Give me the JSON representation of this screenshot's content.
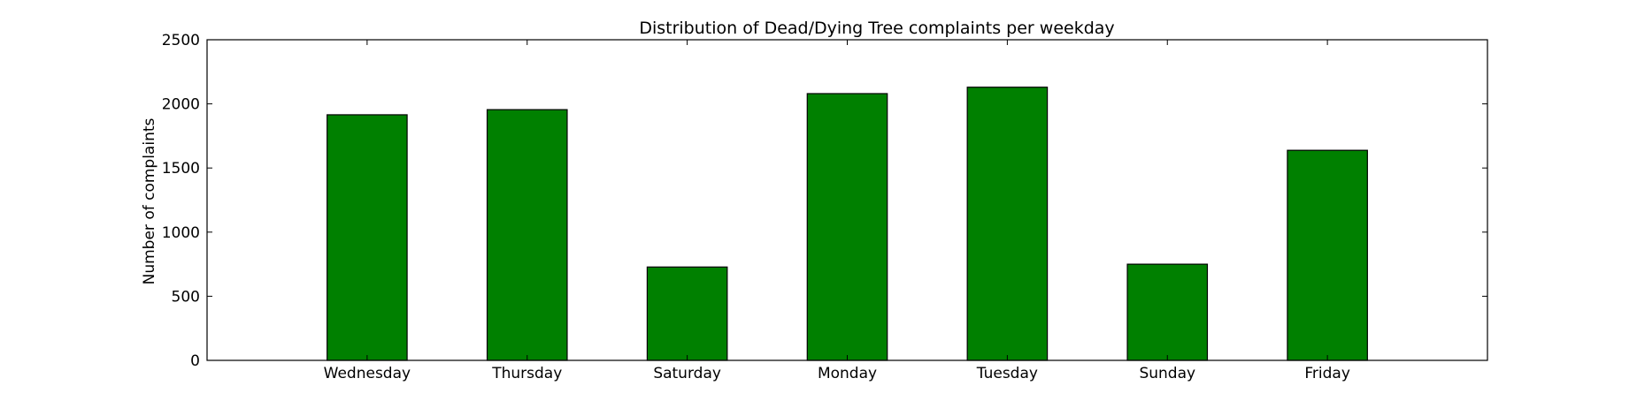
{
  "chart_data": {
    "type": "bar",
    "title": "Distribution of  Dead/Dying Tree complaints per weekday",
    "xlabel": "",
    "ylabel": "Number of complaints",
    "categories": [
      "Wednesday",
      "Thursday",
      "Saturday",
      "Monday",
      "Tuesday",
      "Sunday",
      "Friday"
    ],
    "values": [
      1915,
      1955,
      728,
      2080,
      2130,
      750,
      1638
    ],
    "ylim": [
      0,
      2500
    ],
    "yticks": [
      0,
      500,
      1000,
      1500,
      2000,
      2500
    ],
    "ytick_labels": [
      "0",
      "500",
      "1000",
      "1500",
      "2000",
      "2500"
    ],
    "grid": false,
    "legend": "none",
    "bar_color": "#008000",
    "edge_color": "#000000"
  }
}
